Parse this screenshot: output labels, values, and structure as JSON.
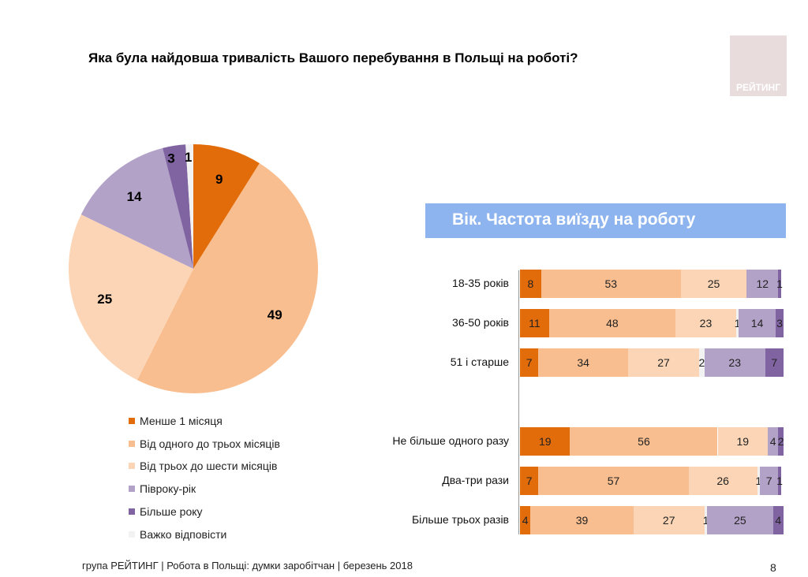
{
  "title": "Яка була найдовша тривалість Вашого перебування в Польщі на роботі?",
  "logo_text": "РЕЙТИНГ",
  "footer": "група РЕЙТИНГ  | Робота в Польщі: думки заробітчан  |  березень 2018",
  "page_number": "8",
  "chart_data": [
    {
      "type": "pie",
      "categories": [
        "Менше 1 місяця",
        "Від одного до трьох  місяців",
        "Від трьох до шести місяців",
        "Півроку-рік",
        "Більше року",
        "Важко відповісти"
      ],
      "values": [
        9,
        49,
        25,
        14,
        3,
        1
      ],
      "colors": [
        "#e36c0a",
        "#f9be8f",
        "#fbd5b5",
        "#b3a2c7",
        "#8064a2",
        "#f2f2f2"
      ],
      "legend": "bottom"
    },
    {
      "type": "bar",
      "orientation": "horizontal",
      "stacked": true,
      "title": "Вік. Частота виїзду на роботу",
      "categories": [
        "18-35 років",
        "36-50 років",
        "51 і старше",
        "",
        "Не більше одного разу",
        "Два-три рази",
        "Більше трьох разів"
      ],
      "series": [
        {
          "values": [
            8,
            11,
            7,
            null,
            19,
            7,
            4
          ],
          "color": "#e36c0a"
        },
        {
          "values": [
            53,
            48,
            34,
            null,
            56,
            57,
            39
          ],
          "color": "#f9be8f"
        },
        {
          "values": [
            25,
            23,
            27,
            null,
            19,
            26,
            27
          ],
          "color": "#fbd5b5"
        },
        {
          "values": [
            null,
            1,
            2,
            null,
            null,
            1,
            1
          ],
          "color": "#f2f2f2"
        },
        {
          "values": [
            12,
            14,
            23,
            null,
            4,
            7,
            25
          ],
          "color": "#b3a2c7"
        },
        {
          "values": [
            1,
            3,
            7,
            null,
            2,
            1,
            4
          ],
          "color": "#8064a2"
        }
      ],
      "xlim": [
        0,
        100
      ]
    }
  ]
}
